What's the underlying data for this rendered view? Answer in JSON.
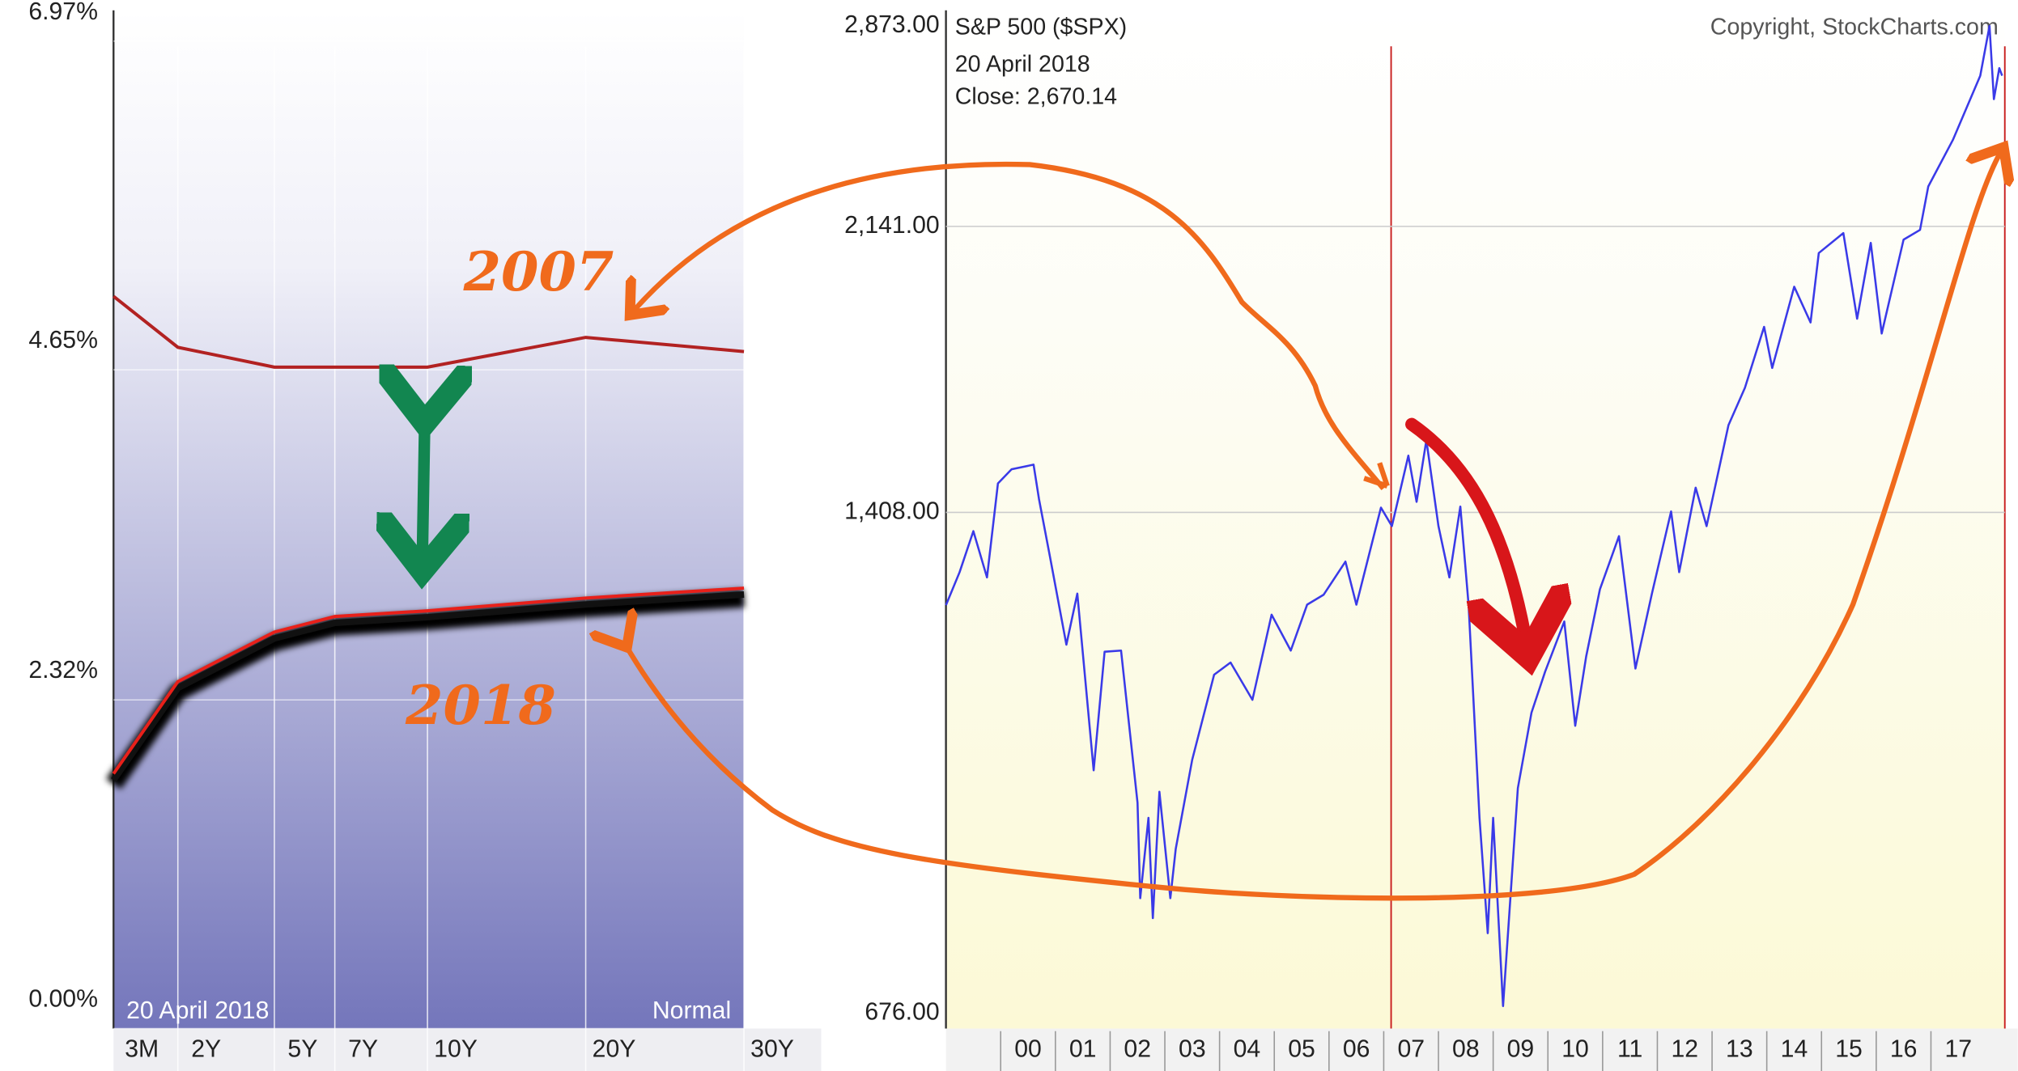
{
  "chart_data": [
    {
      "type": "line",
      "categories": [
        "3M",
        "2Y",
        "5Y",
        "7Y",
        "10Y",
        "20Y",
        "30Y"
      ],
      "series": [
        {
          "name": "2007",
          "color": "#b22222",
          "values": [
            5.06,
            4.7,
            4.56,
            4.56,
            4.56,
            4.77,
            4.67
          ]
        },
        {
          "name": "2018",
          "color": "#e8201a",
          "values": [
            1.69,
            2.34,
            2.69,
            2.8,
            2.84,
            2.93,
            3.0
          ]
        }
      ],
      "ylim": [
        0,
        6.97
      ],
      "yticks": [
        {
          "value": 0,
          "label": "0.00%"
        },
        {
          "value": 2.32,
          "label": "2.32%"
        },
        {
          "value": 4.65,
          "label": "4.65%"
        },
        {
          "value": 6.97,
          "label": "6.97%"
        }
      ],
      "annotations": [
        "20  April 2018",
        "Normal"
      ],
      "grid": true
    },
    {
      "type": "line",
      "title": "S&P 500 ($SPX)",
      "annotations": [
        "20  April 2018",
        "Close: 2,670.14",
        "Copyright, StockCharts.com"
      ],
      "color": "#3a3ae8",
      "log_scale": true,
      "x": [
        1999.0,
        1999.25,
        1999.5,
        1999.75,
        1999.95,
        2000.2,
        2000.6,
        2000.7,
        2000.9,
        2001.2,
        2001.4,
        2001.7,
        2001.9,
        2002.2,
        2002.5,
        2002.55,
        2002.7,
        2002.78,
        2002.9,
        2003.1,
        2003.2,
        2003.5,
        2003.9,
        2004.2,
        2004.6,
        2004.95,
        2005.3,
        2005.6,
        2005.9,
        2006.3,
        2006.5,
        2006.95,
        2007.15,
        2007.45,
        2007.6,
        2007.78,
        2008.0,
        2008.2,
        2008.4,
        2008.55,
        2008.75,
        2008.9,
        2009.0,
        2009.18,
        2009.45,
        2009.7,
        2009.95,
        2010.3,
        2010.5,
        2010.7,
        2010.95,
        2011.3,
        2011.6,
        2011.9,
        2012.25,
        2012.4,
        2012.7,
        2012.9,
        2013.3,
        2013.6,
        2013.95,
        2014.1,
        2014.5,
        2014.8,
        2014.95,
        2015.4,
        2015.65,
        2015.9,
        2016.1,
        2016.5,
        2016.8,
        2016.95,
        2017.4,
        2017.9,
        2018.07,
        2018.15,
        2018.25,
        2018.3
      ],
      "values": [
        1229,
        1290,
        1370,
        1280,
        1469,
        1500,
        1510,
        1436,
        1320,
        1160,
        1250,
        965,
        1148,
        1150,
        920,
        800,
        900,
        777,
        935,
        800,
        860,
        980,
        1110,
        1130,
        1070,
        1212,
        1150,
        1230,
        1248,
        1310,
        1230,
        1418,
        1380,
        1530,
        1430,
        1565,
        1380,
        1280,
        1420,
        1230,
        900,
        760,
        900,
        683,
        940,
        1050,
        1115,
        1200,
        1030,
        1140,
        1258,
        1360,
        1120,
        1250,
        1410,
        1290,
        1460,
        1380,
        1600,
        1690,
        1848,
        1740,
        1960,
        1860,
        2059,
        2120,
        1870,
        2090,
        1830,
        2100,
        2130,
        2270,
        2430,
        2670,
        2872,
        2580,
        2700,
        2670
      ],
      "xlim": [
        1999.0,
        2018.35
      ],
      "xticks": [
        {
          "value": 2000,
          "label": "00"
        },
        {
          "value": 2001,
          "label": "01"
        },
        {
          "value": 2002,
          "label": "02"
        },
        {
          "value": 2003,
          "label": "03"
        },
        {
          "value": 2004,
          "label": "04"
        },
        {
          "value": 2005,
          "label": "05"
        },
        {
          "value": 2006,
          "label": "06"
        },
        {
          "value": 2007,
          "label": "07"
        },
        {
          "value": 2008,
          "label": "08"
        },
        {
          "value": 2009,
          "label": "09"
        },
        {
          "value": 2010,
          "label": "10"
        },
        {
          "value": 2011,
          "label": "11"
        },
        {
          "value": 2012,
          "label": "12"
        },
        {
          "value": 2013,
          "label": "13"
        },
        {
          "value": 2014,
          "label": "14"
        },
        {
          "value": 2015,
          "label": "15"
        },
        {
          "value": 2016,
          "label": "16"
        },
        {
          "value": 2017,
          "label": "17"
        }
      ],
      "ylim": [
        676,
        2873
      ],
      "yticks": [
        {
          "value": 676,
          "label": "676.00"
        },
        {
          "value": 1408,
          "label": "1,408.00"
        },
        {
          "value": 2141,
          "label": "2,141.00"
        },
        {
          "value": 2873,
          "label": "2,873.00"
        }
      ],
      "grid": true
    }
  ]
}
